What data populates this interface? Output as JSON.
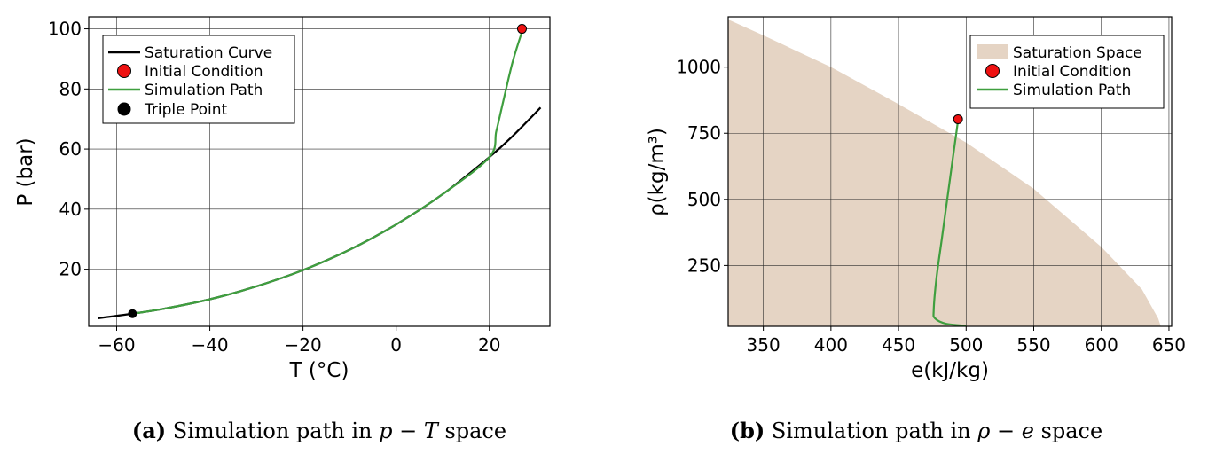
{
  "chart_data": [
    {
      "type": "line",
      "xlabel": "T (°C)",
      "ylabel": "P (bar)",
      "xlim": [
        -66,
        33
      ],
      "ylim": [
        1,
        104
      ],
      "xticks": [
        -60,
        -40,
        -20,
        0,
        20
      ],
      "yticks": [
        20,
        40,
        60,
        80,
        100
      ],
      "grid": true,
      "legend_position": "top-left",
      "legend": [
        "Saturation Curve",
        "Initial Condition",
        "Simulation Path",
        "Triple Point"
      ],
      "series": [
        {
          "name": "Saturation Curve",
          "color": "#000000",
          "x": [
            -64,
            -56.6,
            -50,
            -40,
            -30,
            -20,
            -10,
            0,
            10,
            20,
            25,
            31
          ],
          "y": [
            3.7,
            5.2,
            6.8,
            10.0,
            14.3,
            19.7,
            26.5,
            34.9,
            45.0,
            57.3,
            64.3,
            73.8
          ]
        },
        {
          "name": "Simulation Path",
          "color": "#3f9f3f",
          "x": [
            -56.6,
            -50,
            -40,
            -30,
            -20,
            -10,
            0,
            10,
            20,
            21.5,
            23,
            25,
            27
          ],
          "y": [
            5.2,
            6.8,
            10.0,
            14.3,
            19.7,
            26.5,
            34.9,
            45.0,
            57.3,
            66,
            76,
            89,
            99
          ]
        }
      ],
      "points": [
        {
          "name": "Initial Condition",
          "x": 27,
          "y": 100,
          "color": "#ee1111"
        },
        {
          "name": "Triple Point",
          "x": -56.6,
          "y": 5.2,
          "color": "#000000"
        }
      ],
      "caption_label": "(a)",
      "caption_text_prefix": " Simulation path in ",
      "caption_math_1": "p",
      "caption_math_op": " − ",
      "caption_math_2": "T",
      "caption_text_suffix": " space"
    },
    {
      "type": "area",
      "xlabel": "e(kJ/kg)",
      "ylabel": "ρ(kg/m³)",
      "xlim": [
        324,
        652
      ],
      "ylim": [
        20,
        1190
      ],
      "xticks": [
        350,
        400,
        450,
        500,
        550,
        600,
        650
      ],
      "yticks": [
        250,
        500,
        750,
        1000
      ],
      "grid": true,
      "legend_position": "top-right",
      "legend": [
        "Saturation Space",
        "Initial Condition",
        "Simulation Path"
      ],
      "saturation_space": {
        "name": "Saturation Space",
        "color": "#e5d4c4",
        "boundary_x": [
          324,
          350,
          400,
          450,
          500,
          550,
          600,
          630,
          642,
          644
        ],
        "boundary_y": [
          1180,
          1120,
          1000,
          860,
          715,
          540,
          320,
          160,
          50,
          20
        ]
      },
      "series": [
        {
          "name": "Simulation Path",
          "color": "#3f9f3f",
          "x": [
            500,
            485,
            477,
            476,
            478,
            482,
            486,
            490,
            493,
            494
          ],
          "y": [
            22,
            30,
            50,
            80,
            200,
            350,
            500,
            650,
            760,
            800
          ]
        }
      ],
      "points": [
        {
          "name": "Initial Condition",
          "x": 494,
          "y": 803,
          "color": "#ee1111"
        }
      ],
      "caption_label": "(b)",
      "caption_text_prefix": " Simulation path in ",
      "caption_math_1": "ρ",
      "caption_math_op": " − ",
      "caption_math_2": "e",
      "caption_text_suffix": " space"
    }
  ]
}
